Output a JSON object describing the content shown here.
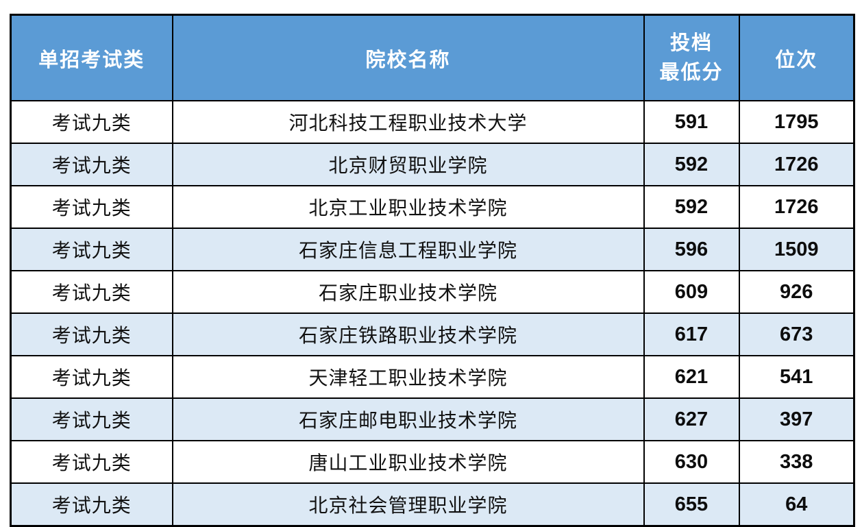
{
  "colors": {
    "header_bg": "#5B9BD5",
    "header_text": "#FFFFFF",
    "row_bg": "#FFFFFF",
    "row_alt_bg": "#DCE9F5",
    "border": "#000000",
    "body_text": "#111111"
  },
  "header": {
    "col1": "单招考试类",
    "col2": "院校名称",
    "col3_line1": "投档",
    "col3_line2": "最低分",
    "col4": "位次"
  },
  "chart_data": {
    "type": "table",
    "columns": [
      "单招考试类",
      "院校名称",
      "投档最低分",
      "位次"
    ],
    "rows": [
      {
        "category": "考试九类",
        "institution": "河北科技工程职业技术大学",
        "min_score": "591",
        "rank": "1795"
      },
      {
        "category": "考试九类",
        "institution": "北京财贸职业学院",
        "min_score": "592",
        "rank": "1726"
      },
      {
        "category": "考试九类",
        "institution": "北京工业职业技术学院",
        "min_score": "592",
        "rank": "1726"
      },
      {
        "category": "考试九类",
        "institution": "石家庄信息工程职业学院",
        "min_score": "596",
        "rank": "1509"
      },
      {
        "category": "考试九类",
        "institution": "石家庄职业技术学院",
        "min_score": "609",
        "rank": "926"
      },
      {
        "category": "考试九类",
        "institution": "石家庄铁路职业技术学院",
        "min_score": "617",
        "rank": "673"
      },
      {
        "category": "考试九类",
        "institution": "天津轻工职业技术学院",
        "min_score": "621",
        "rank": "541"
      },
      {
        "category": "考试九类",
        "institution": "石家庄邮电职业技术学院",
        "min_score": "627",
        "rank": "397"
      },
      {
        "category": "考试九类",
        "institution": "唐山工业职业技术学院",
        "min_score": "630",
        "rank": "338"
      },
      {
        "category": "考试九类",
        "institution": "北京社会管理职业学院",
        "min_score": "655",
        "rank": "64"
      }
    ]
  }
}
